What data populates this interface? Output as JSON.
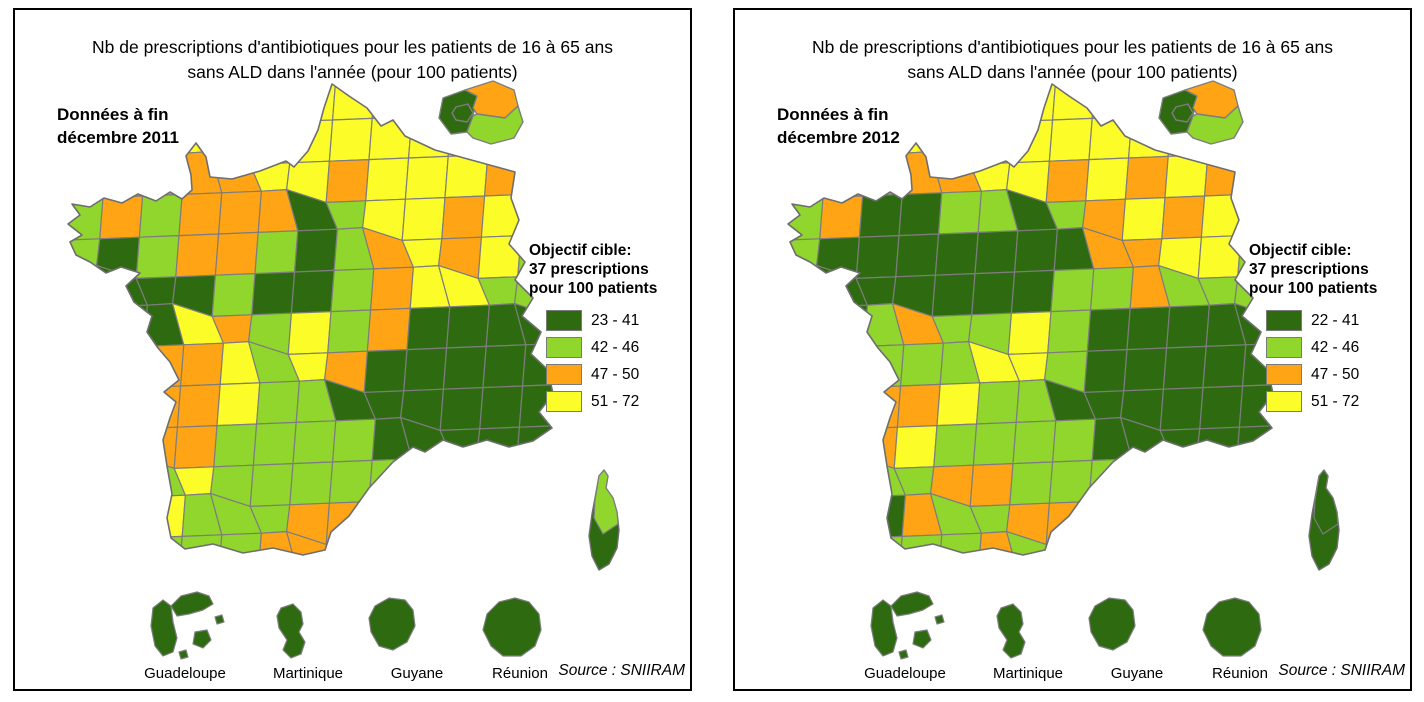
{
  "colors": {
    "D": "#2e6b10",
    "L": "#90d62c",
    "O": "#ffa515",
    "Y": "#fcfc29",
    "cell_border": "#7d7d7d",
    "outline": "#6e6e6e",
    "swatch_border": "#7a7a7a",
    "panel_border": "#000000"
  },
  "panels": [
    {
      "title_line1": "Nb de prescriptions d'antibiotiques pour les patients de 16 à 65 ans",
      "title_line2": "sans ALD dans l'année (pour 100 patients)",
      "data_label_line1": "Données à fin",
      "data_label_line2": "décembre 2011",
      "legend": {
        "title_line1": "Objectif cible:",
        "title_line2": "37 prescriptions",
        "title_line3": "pour 100 patients",
        "items": [
          {
            "label": "23 - 41",
            "color_key": "D"
          },
          {
            "label": "42 - 46",
            "color_key": "L"
          },
          {
            "label": "47 - 50",
            "color_key": "O"
          },
          {
            "label": "51 - 72",
            "color_key": "Y"
          }
        ]
      },
      "islands": [
        "Guadeloupe",
        "Martinique",
        "Guyane",
        "Réunion"
      ],
      "source": "Source : SNIIRAM",
      "map": {
        "grid": [
          "YYYYYYYYYYYYY",
          "YYYYOYYYYYYYY",
          "LLOOOYYOYYYOO",
          "LOLOOODLYYOYY",
          "LDLOOLDLOYOYL",
          "LDDDLDDLOYYLL",
          "LDDYOLYLODDDD",
          "OOOOYLYODDDDD",
          "OOOOYLLDDDDDD",
          "OOOOLLLLDDDDD",
          "OOLYLLLLLLLDD",
          "LLYLLLOOLLLLD",
          "LLLLLOOLLLLLL"
        ],
        "corsica": {
          "north": "L",
          "south": "D"
        },
        "idf_inset": {
          "west": "D",
          "inner": "D",
          "northeast": "O",
          "southeast": "L"
        },
        "overseas": "D"
      }
    },
    {
      "title_line1": "Nb de prescriptions d'antibiotiques pour les patients de 16 à 65 ans",
      "title_line2": "sans ALD dans l'année (pour 100 patients)",
      "data_label_line1": "Données à fin",
      "data_label_line2": "décembre 2012",
      "legend": {
        "title_line1": "Objectif cible:",
        "title_line2": "37 prescriptions",
        "title_line3": "pour 100 patients",
        "items": [
          {
            "label": "22 - 41",
            "color_key": "D"
          },
          {
            "label": "42 - 46",
            "color_key": "L"
          },
          {
            "label": "47 - 50",
            "color_key": "O"
          },
          {
            "label": "51 - 72",
            "color_key": "Y"
          }
        ]
      },
      "islands": [
        "Guadeloupe",
        "Martinique",
        "Guyane",
        "Réunion"
      ],
      "source": "Source : SNIIRAM",
      "map": {
        "grid": [
          "YYYYYYYYYYYYY",
          "YYYYOYYYYYYYY",
          "LLLOOYYOYOYOO",
          "LODDLLDLOYOYO",
          "LDDDDDDDOOYYL",
          "DDDDDDDLLOLLL",
          "LDLOLLYLDDDDD",
          "LLLLLYYLDDDDD",
          "OOOOYLLDDDDDD",
          "LLOYLLLLDDDDD",
          "LLLLOOLLLLLDD",
          "LDDOLLOOLLLLL",
          "LLLLLOLLLLLLL"
        ],
        "corsica": {
          "north": "D",
          "south": "D"
        },
        "idf_inset": {
          "west": "D",
          "inner": "D",
          "northeast": "O",
          "southeast": "L"
        },
        "overseas": "D"
      }
    }
  ]
}
